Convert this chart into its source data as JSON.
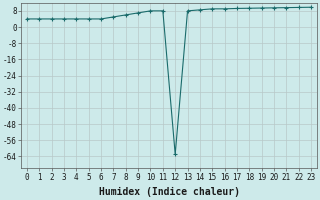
{
  "x": [
    0,
    1,
    2,
    3,
    4,
    5,
    6,
    7,
    8,
    9,
    10,
    11,
    12,
    13,
    14,
    15,
    16,
    17,
    18,
    19,
    20,
    21,
    22,
    23
  ],
  "y": [
    4,
    4,
    4,
    4,
    4,
    4,
    4,
    5,
    6,
    7,
    8,
    8,
    -63,
    8,
    8.5,
    9,
    9,
    9.2,
    9.3,
    9.4,
    9.5,
    9.6,
    9.7,
    9.8
  ],
  "line_color": "#1a6b6b",
  "marker": "+",
  "marker_size": 3,
  "marker_linewidth": 0.8,
  "bg_color": "#cdeaea",
  "grid_color": "#b8c8c8",
  "xlabel": "Humidex (Indice chaleur)",
  "xlabel_fontsize": 7,
  "ylabel_ticks": [
    8,
    0,
    -8,
    -16,
    -24,
    -32,
    -40,
    -48,
    -56,
    -64
  ],
  "ylim": [
    -70,
    12
  ],
  "xlim": [
    -0.5,
    23.5
  ],
  "xticks": [
    0,
    1,
    2,
    3,
    4,
    5,
    6,
    7,
    8,
    9,
    10,
    11,
    12,
    13,
    14,
    15,
    16,
    17,
    18,
    19,
    20,
    21,
    22,
    23
  ],
  "tick_fontsize": 5.5,
  "linewidth": 0.8
}
